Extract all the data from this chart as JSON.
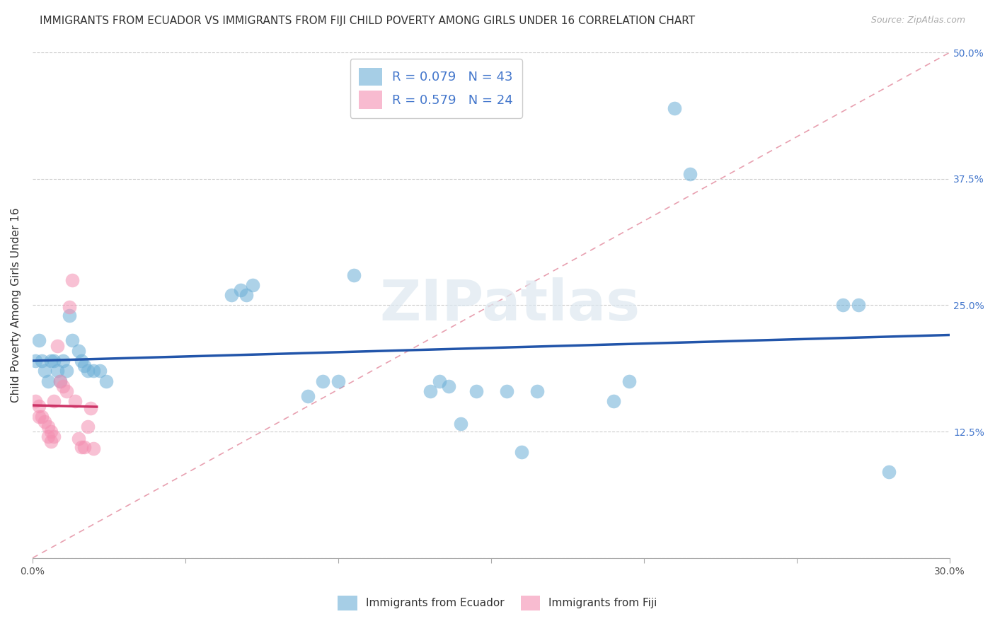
{
  "title": "IMMIGRANTS FROM ECUADOR VS IMMIGRANTS FROM FIJI CHILD POVERTY AMONG GIRLS UNDER 16 CORRELATION CHART",
  "source": "Source: ZipAtlas.com",
  "ylabel": "Child Poverty Among Girls Under 16",
  "xlim": [
    0.0,
    0.3
  ],
  "ylim": [
    0.0,
    0.5
  ],
  "xtick_positions": [
    0.0,
    0.05,
    0.1,
    0.15,
    0.2,
    0.25,
    0.3
  ],
  "xticklabels": [
    "0.0%",
    "",
    "",
    "",
    "",
    "",
    "30.0%"
  ],
  "ytick_positions": [
    0.0,
    0.125,
    0.25,
    0.375,
    0.5
  ],
  "yticklabels_right": [
    "",
    "12.5%",
    "25.0%",
    "37.5%",
    "50.0%"
  ],
  "watermark": "ZIPatlas",
  "ecuador_color": "#6baed6",
  "fiji_color": "#f48fb1",
  "ecuador_R": 0.079,
  "ecuador_N": 43,
  "fiji_R": 0.579,
  "fiji_N": 24,
  "ecuador_line_color": "#2255aa",
  "fiji_line_color": "#cc3366",
  "ref_line_color": "#e8a0b0",
  "grid_color": "#cccccc",
  "bg_color": "#ffffff",
  "text_color_blue": "#4477cc",
  "title_fontsize": 11,
  "axis_label_fontsize": 11,
  "tick_fontsize": 10,
  "legend_fontsize": 13,
  "ecuador_x": [
    0.001,
    0.002,
    0.003,
    0.004,
    0.005,
    0.006,
    0.007,
    0.008,
    0.009,
    0.01,
    0.011,
    0.012,
    0.013,
    0.015,
    0.016,
    0.017,
    0.018,
    0.02,
    0.022,
    0.024,
    0.065,
    0.068,
    0.07,
    0.072,
    0.09,
    0.095,
    0.1,
    0.105,
    0.13,
    0.133,
    0.136,
    0.14,
    0.145,
    0.155,
    0.16,
    0.165,
    0.19,
    0.195,
    0.21,
    0.215,
    0.265,
    0.27,
    0.28
  ],
  "ecuador_y": [
    0.195,
    0.215,
    0.195,
    0.185,
    0.175,
    0.195,
    0.195,
    0.185,
    0.175,
    0.195,
    0.185,
    0.24,
    0.215,
    0.205,
    0.195,
    0.19,
    0.185,
    0.185,
    0.185,
    0.175,
    0.26,
    0.265,
    0.26,
    0.27,
    0.16,
    0.175,
    0.175,
    0.28,
    0.165,
    0.175,
    0.17,
    0.133,
    0.165,
    0.165,
    0.105,
    0.165,
    0.155,
    0.175,
    0.445,
    0.38,
    0.25,
    0.25,
    0.085
  ],
  "fiji_x": [
    0.001,
    0.002,
    0.002,
    0.003,
    0.004,
    0.005,
    0.005,
    0.006,
    0.006,
    0.007,
    0.007,
    0.008,
    0.009,
    0.01,
    0.011,
    0.012,
    0.013,
    0.014,
    0.015,
    0.016,
    0.017,
    0.018,
    0.019,
    0.02
  ],
  "fiji_y": [
    0.155,
    0.15,
    0.14,
    0.14,
    0.135,
    0.13,
    0.12,
    0.125,
    0.115,
    0.12,
    0.155,
    0.21,
    0.175,
    0.17,
    0.165,
    0.248,
    0.275,
    0.155,
    0.118,
    0.11,
    0.11,
    0.13,
    0.148,
    0.108
  ]
}
